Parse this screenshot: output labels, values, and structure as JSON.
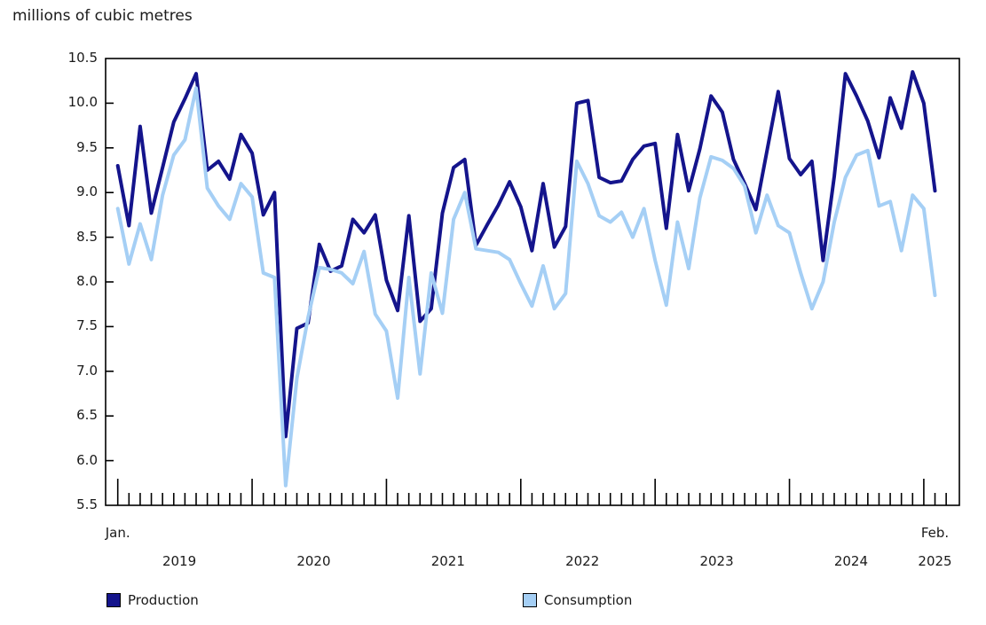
{
  "title": "millions of cubic metres",
  "colors": {
    "production": "#14148C",
    "consumption": "#A5CFF5",
    "axis": "#000000",
    "text": "#1A1A1A",
    "background": "#FFFFFF"
  },
  "y_axis": {
    "min": 5.5,
    "max": 10.5,
    "step": 0.5,
    "labels": [
      "5.5",
      "6.0",
      "6.5",
      "7.0",
      "7.5",
      "8.0",
      "8.5",
      "9.0",
      "9.5",
      "10.0",
      "10.5"
    ]
  },
  "x_axis": {
    "first_month_label": "Jan.",
    "last_month_label": "Feb.",
    "years": [
      "2019",
      "2020",
      "2021",
      "2022",
      "2023",
      "2024",
      "2025"
    ]
  },
  "legend": {
    "production_label": "Production",
    "consumption_label": "Consumption"
  },
  "chart_data": {
    "type": "line",
    "title": "millions of cubic metres",
    "xlabel": "",
    "ylabel": "millions of cubic metres",
    "x_range": "Jan. 2019 to Feb. 2025, monthly",
    "months_count": 74,
    "ylim": [
      5.5,
      10.5
    ],
    "grid": false,
    "legend_position": "bottom",
    "series": [
      {
        "name": "Production",
        "color": "#14148C",
        "values": [
          9.3,
          8.63,
          9.74,
          8.77,
          9.28,
          9.79,
          10.05,
          10.33,
          9.25,
          9.35,
          9.15,
          9.65,
          9.44,
          8.75,
          9.0,
          6.27,
          7.48,
          7.54,
          8.42,
          8.12,
          8.18,
          8.7,
          8.55,
          8.75,
          8.02,
          7.68,
          8.74,
          7.56,
          7.7,
          8.77,
          9.28,
          9.37,
          8.41,
          8.64,
          8.86,
          9.12,
          8.84,
          8.35,
          9.1,
          8.39,
          8.62,
          10.0,
          10.03,
          9.17,
          9.11,
          9.13,
          9.37,
          9.52,
          9.55,
          8.6,
          9.65,
          9.02,
          9.49,
          10.08,
          9.9,
          9.37,
          9.1,
          8.81,
          9.47,
          10.13,
          9.38,
          9.2,
          9.35,
          8.24,
          9.18,
          10.33,
          10.08,
          9.8,
          9.39,
          10.06,
          9.72,
          10.35,
          10.0,
          9.02
        ]
      },
      {
        "name": "Consumption",
        "color": "#A5CFF5",
        "values": [
          8.82,
          8.2,
          8.65,
          8.25,
          8.97,
          9.42,
          9.59,
          10.17,
          9.05,
          8.85,
          8.7,
          9.1,
          8.95,
          8.1,
          8.05,
          5.72,
          6.92,
          7.6,
          8.16,
          8.14,
          8.1,
          7.98,
          8.34,
          7.64,
          7.45,
          6.7,
          8.05,
          6.97,
          8.1,
          7.65,
          8.7,
          9.0,
          8.37,
          8.35,
          8.33,
          8.25,
          7.98,
          7.73,
          8.18,
          7.7,
          7.87,
          9.35,
          9.1,
          8.74,
          8.67,
          8.78,
          8.5,
          8.82,
          8.24,
          7.74,
          8.67,
          8.15,
          8.94,
          9.4,
          9.36,
          9.27,
          9.07,
          8.55,
          8.97,
          8.63,
          8.55,
          8.1,
          7.7,
          8.0,
          8.67,
          9.17,
          9.42,
          9.47,
          8.85,
          8.9,
          8.35,
          8.97,
          8.82,
          7.85
        ]
      }
    ]
  }
}
